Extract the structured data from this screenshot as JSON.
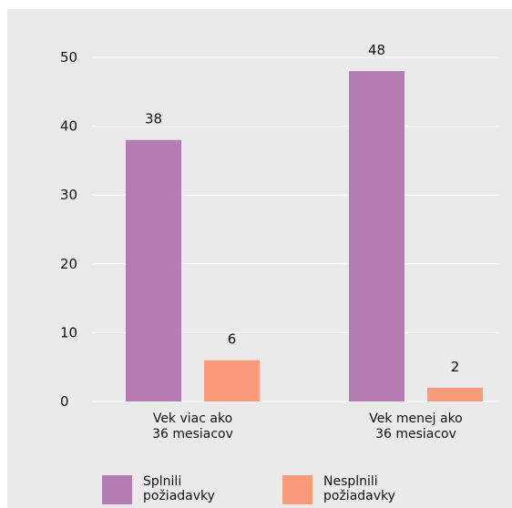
{
  "chart_data": {
    "type": "bar",
    "categories": [
      [
        "Vek viac ako",
        "36 mesiacov"
      ],
      [
        "Vek menej ako",
        "36 mesiacov"
      ]
    ],
    "series": [
      {
        "name": "Splnili požiadavky",
        "legend_lines": [
          "Splnili",
          "požiadavky"
        ],
        "values": [
          38,
          48
        ],
        "color": "#b57bb3"
      },
      {
        "name": "Nesplnili požiadavky",
        "legend_lines": [
          "Nesplnili",
          "požiadavky"
        ],
        "values": [
          6,
          2
        ],
        "color": "#fa9b7b"
      }
    ],
    "yticks": [
      0,
      10,
      20,
      30,
      40,
      50
    ],
    "ylim": [
      0,
      50
    ],
    "grid": true,
    "legend_position": "bottom",
    "colors": {
      "background": "#eaeaea",
      "grid": "#ffffff",
      "text": "#111111"
    }
  }
}
